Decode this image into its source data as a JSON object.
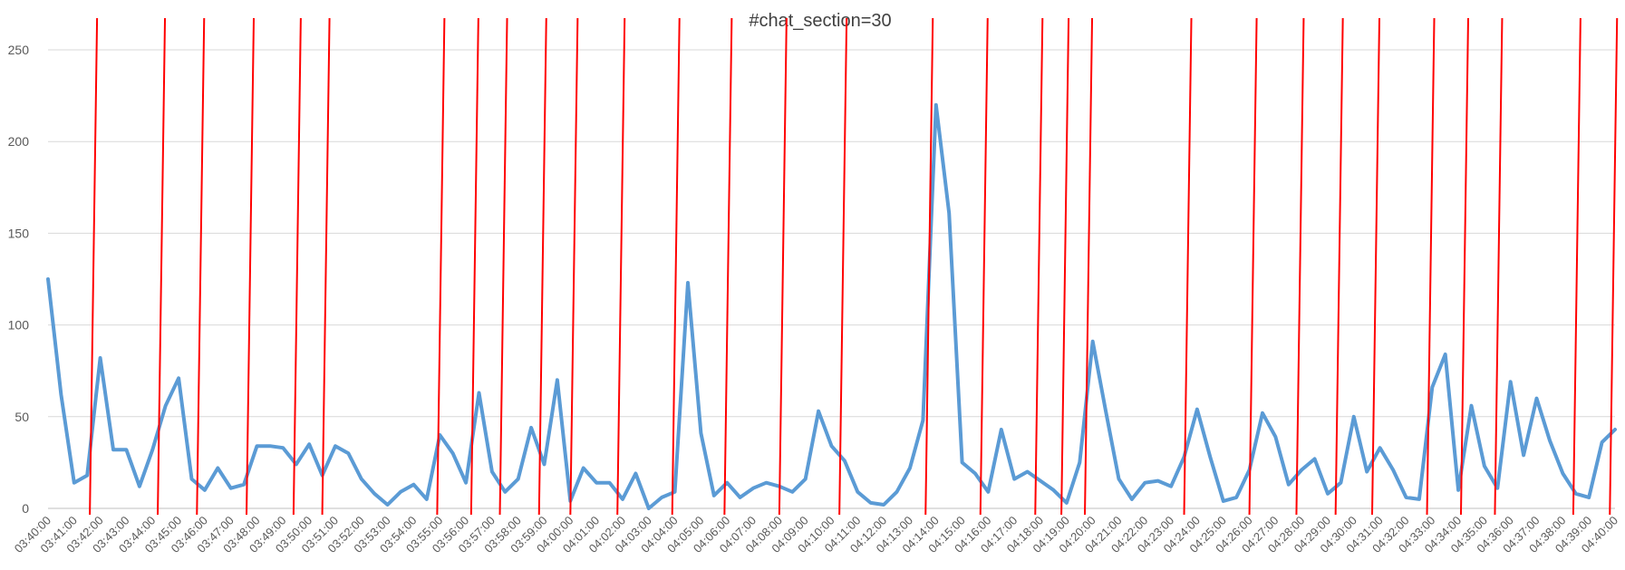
{
  "chart_data": {
    "type": "line",
    "title": "#chat_section=30",
    "xlabel": "",
    "ylabel": "",
    "ylim": [
      0,
      250
    ],
    "yticks": [
      0,
      50,
      100,
      150,
      200,
      250
    ],
    "grid": true,
    "x_tick_labels": [
      "03:40:00",
      "03:41:00",
      "03:42:00",
      "03:43:00",
      "03:44:00",
      "03:45:00",
      "03:46:00",
      "03:47:00",
      "03:48:00",
      "03:49:00",
      "03:50:00",
      "03:51:00",
      "03:52:00",
      "03:53:00",
      "03:54:00",
      "03:55:00",
      "03:56:00",
      "03:57:00",
      "03:58:00",
      "03:59:00",
      "04:00:00",
      "04:01:00",
      "04:02:00",
      "04:03:00",
      "04:04:00",
      "04:05:00",
      "04:06:00",
      "04:07:00",
      "04:08:00",
      "04:09:00",
      "04:10:00",
      "04:11:00",
      "04:12:00",
      "04:13:00",
      "04:14:00",
      "04:15:00",
      "04:16:00",
      "04:17:00",
      "04:18:00",
      "04:19:00",
      "04:20:00",
      "04:21:00",
      "04:22:00",
      "04:23:00",
      "04:24:00",
      "04:25:00",
      "04:26:00",
      "04:27:00",
      "04:28:00",
      "04:29:00",
      "04:30:00",
      "04:31:00",
      "04:32:00",
      "04:33:00",
      "04:34:00",
      "04:35:00",
      "04:36:00",
      "04:37:00",
      "04:38:00",
      "04:39:00",
      "04:40:00"
    ],
    "series": [
      {
        "color": "#5b9bd5",
        "x_minutes_from_start": [
          0,
          0.5,
          1,
          1.5,
          2,
          2.5,
          3,
          3.5,
          4,
          4.5,
          5,
          5.5,
          6,
          6.5,
          7,
          7.5,
          8,
          8.5,
          9,
          9.5,
          10,
          10.5,
          11,
          11.5,
          12,
          12.5,
          13,
          13.5,
          14,
          14.5,
          15,
          15.5,
          16,
          16.5,
          17,
          17.5,
          18,
          18.5,
          19,
          19.5,
          20,
          20.5,
          21,
          21.5,
          22,
          22.5,
          23,
          23.5,
          24,
          24.5,
          25,
          25.5,
          26,
          26.5,
          27,
          27.5,
          28,
          28.5,
          29,
          29.5,
          30,
          30.5,
          31,
          31.5,
          32,
          32.5,
          33,
          33.5,
          34,
          34.5,
          35,
          35.5,
          36,
          36.5,
          37,
          37.5,
          38,
          38.5,
          39,
          39.5,
          40,
          40.5,
          41,
          41.5,
          42,
          42.5,
          43,
          43.5,
          44,
          44.5,
          45,
          45.5,
          46,
          46.5,
          47,
          47.5,
          48,
          48.5,
          49,
          49.5,
          50,
          50.5,
          51,
          51.5,
          52,
          52.5,
          53,
          53.5,
          54,
          54.5,
          55,
          55.5,
          56,
          56.5,
          57,
          57.5,
          58,
          58.5,
          59,
          59.5,
          60
        ],
        "values": [
          125,
          62,
          14,
          18,
          82,
          32,
          32,
          12,
          32,
          56,
          71,
          16,
          10,
          22,
          11,
          13,
          34,
          34,
          33,
          24,
          35,
          18,
          34,
          30,
          16,
          8,
          2,
          9,
          13,
          5,
          40,
          30,
          14,
          63,
          20,
          9,
          16,
          44,
          24,
          70,
          4,
          22,
          14,
          14,
          5,
          19,
          0,
          6,
          9,
          123,
          41,
          7,
          14,
          6,
          11,
          14,
          12,
          9,
          16,
          53,
          34,
          26,
          9,
          3,
          2,
          9,
          22,
          48,
          220,
          161,
          25,
          19,
          9,
          43,
          16,
          20,
          15,
          10,
          3,
          25,
          91,
          53,
          16,
          5,
          14,
          15,
          12,
          28,
          54,
          28,
          4,
          6,
          21,
          52,
          39,
          13,
          21,
          27,
          8,
          14,
          50,
          20,
          33,
          21,
          6,
          5,
          66,
          84,
          10,
          56,
          23,
          11,
          69,
          29,
          60,
          37,
          19,
          8,
          6,
          36,
          43
        ]
      }
    ],
    "vertical_markers": {
      "color": "#ff0000",
      "x_minutes_from_start": [
        1.6,
        4.2,
        5.7,
        7.6,
        9.4,
        10.5,
        14.9,
        16.2,
        17.3,
        18.8,
        20.0,
        21.8,
        23.9,
        25.9,
        28.0,
        30.3,
        33.6,
        35.7,
        37.8,
        38.8,
        39.7,
        43.5,
        46.0,
        47.8,
        49.3,
        50.7,
        52.8,
        54.1,
        55.4,
        58.4,
        59.8
      ]
    }
  }
}
